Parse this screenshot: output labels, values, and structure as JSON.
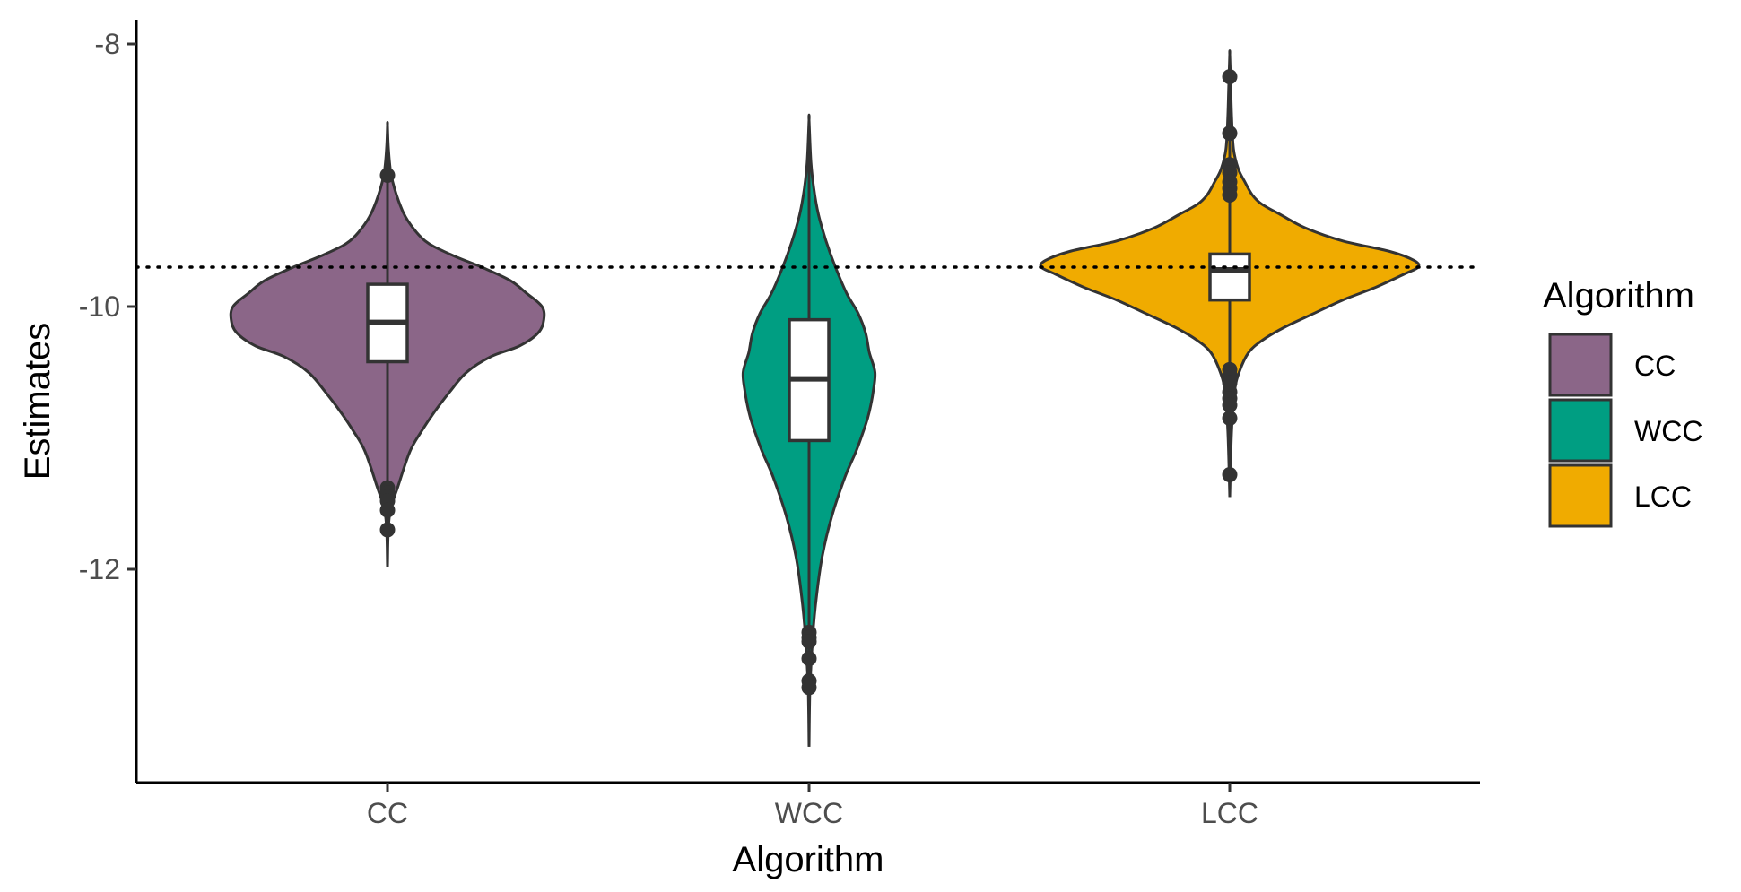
{
  "chart_data": {
    "type": "violin",
    "title": "",
    "xlabel": "Algorithm",
    "ylabel": "Estimates",
    "ylim": [
      -13.6,
      -7.8
    ],
    "yticks": [
      -12,
      -10,
      -8
    ],
    "reference_line": {
      "y": -9.7,
      "style": "dotted"
    },
    "grid": false,
    "legend": {
      "title": "Algorithm",
      "placement": "right"
    },
    "categories": [
      "CC",
      "WCC",
      "LCC"
    ],
    "series": [
      {
        "name": "CC",
        "color": "#8b6688",
        "box": {
          "q1": -10.42,
          "median": -10.12,
          "q3": -9.83
        },
        "whisker": [
          -11.3,
          -9.0
        ],
        "line_range": [
          -11.98,
          -8.62
        ],
        "outliers": [
          -9.0,
          -11.38,
          -11.42,
          -11.45,
          -11.48,
          -11.55,
          -11.7
        ],
        "density": [
          [
            -11.98,
            0
          ],
          [
            -11.6,
            0.01
          ],
          [
            -11.35,
            0.06
          ],
          [
            -11.1,
            0.12
          ],
          [
            -10.95,
            0.18
          ],
          [
            -10.8,
            0.25
          ],
          [
            -10.65,
            0.33
          ],
          [
            -10.5,
            0.42
          ],
          [
            -10.38,
            0.55
          ],
          [
            -10.3,
            0.7
          ],
          [
            -10.2,
            0.8
          ],
          [
            -10.1,
            0.83
          ],
          [
            -10.0,
            0.82
          ],
          [
            -9.9,
            0.74
          ],
          [
            -9.8,
            0.65
          ],
          [
            -9.7,
            0.5
          ],
          [
            -9.6,
            0.33
          ],
          [
            -9.5,
            0.2
          ],
          [
            -9.35,
            0.11
          ],
          [
            -9.2,
            0.06
          ],
          [
            -9.0,
            0.02
          ],
          [
            -8.8,
            0.005
          ],
          [
            -8.62,
            0
          ]
        ]
      },
      {
        "name": "WCC",
        "color": "#009e82",
        "box": {
          "q1": -11.02,
          "median": -10.55,
          "q3": -10.1
        },
        "whisker": [
          -12.45,
          -9.1
        ],
        "line_range": [
          -13.35,
          -8.58
        ],
        "outliers": [
          -12.48,
          -12.52,
          -12.55,
          -12.68,
          -12.85,
          -12.9
        ],
        "density": [
          [
            -13.35,
            0
          ],
          [
            -12.9,
            0.005
          ],
          [
            -12.5,
            0.02
          ],
          [
            -12.2,
            0.04
          ],
          [
            -11.9,
            0.07
          ],
          [
            -11.6,
            0.12
          ],
          [
            -11.3,
            0.19
          ],
          [
            -11.1,
            0.25
          ],
          [
            -10.9,
            0.3
          ],
          [
            -10.8,
            0.32
          ],
          [
            -10.65,
            0.34
          ],
          [
            -10.5,
            0.35
          ],
          [
            -10.35,
            0.32
          ],
          [
            -10.2,
            0.3
          ],
          [
            -10.05,
            0.26
          ],
          [
            -9.9,
            0.2
          ],
          [
            -9.7,
            0.14
          ],
          [
            -9.5,
            0.09
          ],
          [
            -9.3,
            0.05
          ],
          [
            -9.1,
            0.025
          ],
          [
            -8.9,
            0.01
          ],
          [
            -8.58,
            0
          ]
        ]
      },
      {
        "name": "LCC",
        "color": "#f0ab00",
        "box": {
          "q1": -9.95,
          "median": -9.72,
          "q3": -9.6
        },
        "whisker": [
          -10.45,
          -9.05
        ],
        "line_range": [
          -11.45,
          -8.08
        ],
        "outliers": [
          -8.25,
          -8.68,
          -8.92,
          -8.98,
          -9.05,
          -9.1,
          -9.15,
          -10.48,
          -10.52,
          -10.58,
          -10.65,
          -10.7,
          -10.75,
          -10.85,
          -11.28
        ],
        "density": [
          [
            -11.45,
            0
          ],
          [
            -10.95,
            0.01
          ],
          [
            -10.65,
            0.025
          ],
          [
            -10.5,
            0.05
          ],
          [
            -10.35,
            0.1
          ],
          [
            -10.25,
            0.18
          ],
          [
            -10.15,
            0.3
          ],
          [
            -10.05,
            0.45
          ],
          [
            -9.95,
            0.6
          ],
          [
            -9.85,
            0.78
          ],
          [
            -9.75,
            0.93
          ],
          [
            -9.7,
            1.0
          ],
          [
            -9.65,
            0.98
          ],
          [
            -9.58,
            0.85
          ],
          [
            -9.5,
            0.6
          ],
          [
            -9.4,
            0.4
          ],
          [
            -9.3,
            0.27
          ],
          [
            -9.22,
            0.17
          ],
          [
            -9.15,
            0.12
          ],
          [
            -9.05,
            0.08
          ],
          [
            -8.95,
            0.045
          ],
          [
            -8.8,
            0.02
          ],
          [
            -8.55,
            0.01
          ],
          [
            -8.3,
            0.005
          ],
          [
            -8.08,
            0
          ]
        ]
      }
    ]
  }
}
